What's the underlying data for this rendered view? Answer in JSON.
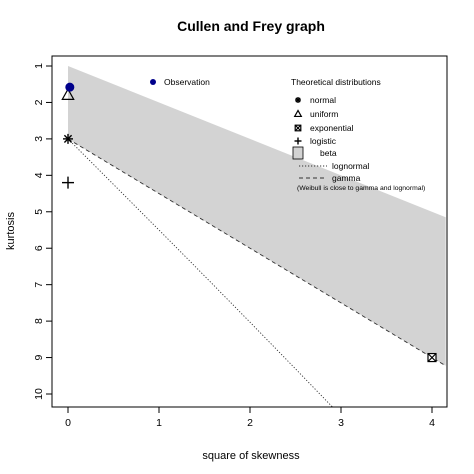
{
  "chart_data": {
    "type": "scatter",
    "title": "Cullen and Frey graph",
    "xlabel": "square of skewness",
    "ylabel": "kurtosis",
    "xlim": [
      0,
      4.15
    ],
    "ylim": [
      10.3,
      0.8
    ],
    "y_reversed": true,
    "x_ticks": [
      "0",
      "1",
      "2",
      "3",
      "4"
    ],
    "y_ticks": [
      "1",
      "2",
      "3",
      "4",
      "5",
      "6",
      "7",
      "8",
      "9",
      "10"
    ],
    "observation": {
      "x": 0.02,
      "y": 1.58,
      "color": "#00008B"
    },
    "theoretical_points": [
      {
        "name": "normal",
        "x": 0,
        "y": 3,
        "marker": "asterisk"
      },
      {
        "name": "uniform",
        "x": 0,
        "y": 1.8,
        "marker": "triangle"
      },
      {
        "name": "exponential",
        "x": 4,
        "y": 9,
        "marker": "boxed-x"
      },
      {
        "name": "logistic",
        "x": 0,
        "y": 4.2,
        "marker": "plus"
      }
    ],
    "beta_region": {
      "color": "#d3d3d3",
      "polygon": [
        [
          0,
          1
        ],
        [
          4.15,
          5.15
        ],
        [
          4.15,
          9.225
        ],
        [
          0,
          3
        ]
      ]
    },
    "lognormal_curve": {
      "style": "dotted",
      "points": [
        [
          0,
          3
        ],
        [
          0.5,
          4.25
        ],
        [
          1,
          5.5
        ],
        [
          1.5,
          6.76
        ],
        [
          2,
          8.03
        ],
        [
          2.5,
          9.31
        ],
        [
          3,
          10.6
        ]
      ]
    },
    "gamma_line": {
      "style": "dashed",
      "points": [
        [
          0,
          3
        ],
        [
          4.15,
          9.225
        ]
      ]
    },
    "legend": {
      "observation_label": "Observation",
      "title": "Theoretical distributions",
      "items": [
        "normal",
        "uniform",
        "exponential",
        "logistic",
        "beta",
        "lognormal",
        "gamma"
      ],
      "note": "(Weibull is close to gamma and lognormal)"
    },
    "grid": false
  }
}
